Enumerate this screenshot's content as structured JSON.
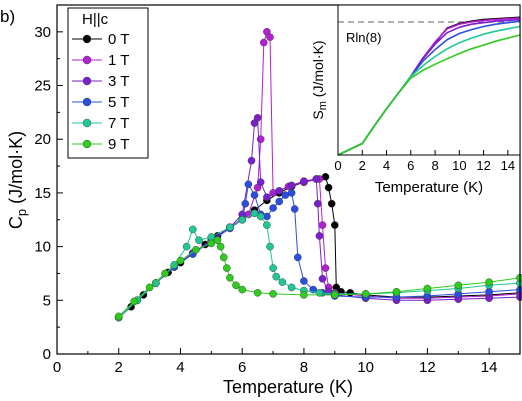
{
  "panel_label": "b)",
  "chart_data": [
    {
      "type": "scatter",
      "xlabel": "Temperature (K)",
      "ylabel_main": "C",
      "ylabel_sub": "p",
      "ylabel_unit": " (J/mol·K)",
      "xlim": [
        0,
        15
      ],
      "ylim": [
        0,
        32.5
      ],
      "xticks": [
        0,
        2,
        4,
        6,
        8,
        10,
        12,
        14
      ],
      "yticks": [
        0,
        5,
        10,
        15,
        20,
        25,
        30
      ],
      "grid": false,
      "legend": {
        "title": "H||c",
        "placement": "top-left"
      },
      "series": [
        {
          "name": "0 T",
          "color": "#000000",
          "x": [
            2.0,
            2.4,
            2.8,
            3.2,
            3.6,
            4.0,
            4.4,
            4.8,
            5.2,
            5.6,
            6.0,
            6.4,
            6.8,
            7.2,
            7.6,
            8.0,
            8.4,
            8.7,
            8.8,
            8.9,
            9.0,
            9.05,
            9.2,
            9.5,
            10.0,
            11.0,
            12.0,
            13.0,
            14.0,
            15.0
          ],
          "y": [
            3.4,
            4.4,
            5.5,
            6.6,
            7.6,
            8.5,
            9.4,
            10.2,
            11.0,
            11.8,
            12.6,
            13.4,
            14.3,
            15.0,
            15.6,
            16.0,
            16.3,
            16.5,
            15.5,
            14.0,
            12.0,
            6.2,
            5.8,
            5.7,
            5.5,
            5.3,
            5.3,
            5.4,
            5.5,
            5.7
          ]
        },
        {
          "name": "1 T",
          "color": "#b41fd2",
          "x": [
            2.0,
            2.6,
            3.2,
            3.8,
            4.4,
            5.0,
            5.6,
            6.2,
            6.5,
            6.6,
            6.7,
            6.8,
            6.9,
            7.0,
            7.5,
            8.0,
            8.5,
            8.6,
            8.7,
            8.8,
            9.0,
            10.0,
            11.0,
            12.0,
            13.0,
            14.0,
            15.0
          ],
          "y": [
            3.4,
            5.0,
            6.6,
            8.1,
            9.4,
            10.6,
            11.8,
            13.0,
            15.5,
            20.0,
            29.0,
            30.0,
            29.5,
            15.0,
            15.6,
            16.0,
            16.3,
            12.0,
            8.0,
            6.2,
            5.7,
            5.4,
            5.2,
            5.2,
            5.3,
            5.4,
            5.6
          ]
        },
        {
          "name": "3 T",
          "color": "#7a1fcc",
          "x": [
            2.0,
            2.6,
            3.2,
            3.8,
            4.4,
            5.0,
            5.6,
            6.0,
            6.3,
            6.4,
            6.5,
            6.6,
            6.8,
            7.2,
            7.6,
            8.0,
            8.4,
            8.45,
            8.5,
            8.6,
            8.8,
            9.0,
            10.0,
            11.0,
            12.0,
            13.0,
            14.0,
            15.0
          ],
          "y": [
            3.4,
            5.0,
            6.6,
            8.1,
            9.4,
            10.6,
            11.8,
            13.0,
            18.0,
            21.5,
            22.0,
            16.0,
            14.6,
            15.2,
            15.7,
            16.1,
            16.3,
            14.0,
            11.0,
            7.0,
            5.8,
            5.5,
            5.2,
            5.0,
            5.0,
            5.1,
            5.2,
            5.3
          ]
        },
        {
          "name": "5 T",
          "color": "#2a4fe0",
          "x": [
            2.0,
            2.6,
            3.2,
            3.8,
            4.4,
            5.0,
            5.6,
            6.0,
            6.1,
            6.2,
            6.4,
            6.6,
            6.8,
            7.0,
            7.2,
            7.4,
            7.6,
            7.7,
            7.8,
            8.0,
            8.3,
            8.6,
            9.0,
            10.0,
            11.0,
            12.0,
            13.0,
            14.0,
            15.0
          ],
          "y": [
            3.4,
            5.0,
            6.6,
            8.1,
            9.3,
            10.5,
            11.7,
            12.5,
            14.0,
            15.8,
            14.8,
            13.0,
            12.8,
            13.6,
            14.2,
            14.8,
            15.0,
            13.5,
            9.0,
            6.8,
            6.0,
            5.7,
            5.4,
            5.3,
            5.3,
            5.4,
            5.6,
            5.8,
            6.0
          ]
        },
        {
          "name": "7 T",
          "color": "#1fc896",
          "x": [
            2.0,
            2.6,
            3.2,
            3.8,
            4.2,
            4.4,
            4.6,
            5.0,
            5.6,
            6.0,
            6.4,
            6.6,
            6.8,
            6.9,
            7.0,
            7.1,
            7.3,
            7.6,
            8.0,
            8.5,
            9.0,
            10.0,
            11.0,
            12.0,
            13.0,
            14.0,
            15.0
          ],
          "y": [
            3.4,
            5.0,
            6.6,
            8.3,
            10.0,
            11.6,
            10.6,
            10.9,
            11.8,
            12.5,
            13.1,
            12.8,
            12.0,
            10.0,
            8.0,
            7.2,
            6.7,
            6.2,
            5.9,
            5.7,
            5.6,
            5.6,
            5.7,
            5.9,
            6.1,
            6.4,
            6.6
          ]
        },
        {
          "name": "9 T",
          "color": "#2ecc1c",
          "x": [
            2.0,
            2.5,
            3.0,
            3.5,
            4.0,
            4.5,
            5.0,
            5.2,
            5.3,
            5.4,
            5.5,
            5.6,
            5.8,
            6.0,
            6.5,
            7.0,
            8.0,
            9.0,
            10.0,
            11.0,
            12.0,
            13.0,
            14.0,
            15.0
          ],
          "y": [
            3.5,
            4.9,
            6.2,
            7.5,
            8.7,
            9.7,
            10.3,
            10.6,
            10.0,
            9.0,
            8.0,
            7.1,
            6.4,
            6.0,
            5.7,
            5.6,
            5.5,
            5.5,
            5.6,
            5.8,
            6.1,
            6.4,
            6.7,
            7.1
          ]
        }
      ]
    },
    {
      "type": "line",
      "xlabel": "Temperature (K)",
      "ylabel_main": "S",
      "ylabel_sub": "m",
      "ylabel_unit": " (J/mol·K)",
      "xlim": [
        0,
        15
      ],
      "ylim": [
        0,
        19.5
      ],
      "xticks": [
        0,
        2,
        4,
        6,
        8,
        10,
        12,
        14
      ],
      "grid": false,
      "reference_line": {
        "label": "Rln(8)",
        "value": 17.29,
        "style": "dashed"
      },
      "series": [
        {
          "name": "0 T",
          "color": "#000000",
          "x": [
            0,
            2,
            3,
            4,
            5,
            6,
            7,
            8,
            9,
            10,
            11,
            12,
            13,
            14,
            15
          ],
          "y": [
            0,
            1.5,
            3.8,
            6.0,
            8.1,
            10.2,
            12.6,
            14.6,
            16.5,
            17.1,
            17.4,
            17.6,
            17.7,
            17.8,
            17.9
          ]
        },
        {
          "name": "1 T",
          "color": "#b41fd2",
          "x": [
            0,
            2,
            3,
            4,
            5,
            6,
            7,
            8,
            9,
            10,
            11,
            12,
            13,
            14,
            15
          ],
          "y": [
            0,
            1.5,
            3.8,
            6.0,
            8.1,
            10.2,
            12.6,
            14.7,
            16.4,
            17.0,
            17.3,
            17.5,
            17.6,
            17.7,
            17.8
          ]
        },
        {
          "name": "3 T",
          "color": "#7a1fcc",
          "x": [
            0,
            2,
            3,
            4,
            5,
            6,
            7,
            8,
            9,
            10,
            11,
            12,
            13,
            14,
            15
          ],
          "y": [
            0,
            1.5,
            3.8,
            6.0,
            8.1,
            10.2,
            12.5,
            14.4,
            15.9,
            16.6,
            17.0,
            17.2,
            17.4,
            17.5,
            17.6
          ]
        },
        {
          "name": "5 T",
          "color": "#2a4fe0",
          "x": [
            0,
            2,
            3,
            4,
            5,
            6,
            7,
            8,
            9,
            10,
            11,
            12,
            13,
            14,
            15
          ],
          "y": [
            0,
            1.5,
            3.8,
            6.0,
            8.1,
            10.2,
            12.2,
            13.7,
            15.0,
            15.8,
            16.3,
            16.7,
            17.0,
            17.2,
            17.4
          ]
        },
        {
          "name": "7 T",
          "color": "#1fc896",
          "x": [
            0,
            2,
            3,
            4,
            5,
            6,
            7,
            8,
            9,
            10,
            11,
            12,
            13,
            14,
            15
          ],
          "y": [
            0,
            1.5,
            3.8,
            6.0,
            8.1,
            10.2,
            11.6,
            12.8,
            13.8,
            14.6,
            15.2,
            15.7,
            16.1,
            16.4,
            16.7
          ]
        },
        {
          "name": "9 T",
          "color": "#2ecc1c",
          "x": [
            0,
            2,
            3,
            4,
            5,
            6,
            7,
            8,
            9,
            10,
            11,
            12,
            13,
            14,
            15
          ],
          "y": [
            0,
            1.5,
            3.8,
            6.0,
            8.1,
            10.0,
            11.0,
            11.8,
            12.5,
            13.2,
            13.8,
            14.3,
            14.8,
            15.2,
            15.6
          ]
        }
      ]
    }
  ]
}
